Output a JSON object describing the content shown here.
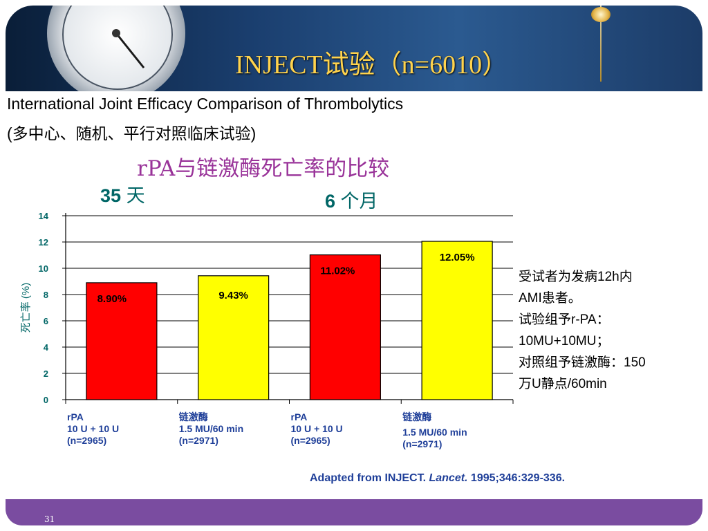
{
  "header": {
    "title": "INJECT试验（n=6010）"
  },
  "subtitle_en": "International Joint Efficacy Comparison of Thrombolytics",
  "subtitle_cn": "(多中心、随机、平行对照临床试验)",
  "chart_title": "rPA与链激酶死亡率的比较",
  "periods": [
    {
      "num": "35",
      "unit": "天"
    },
    {
      "num": "6",
      "unit": "个月"
    }
  ],
  "chart_data": {
    "type": "bar",
    "title": "rPA与链激酶死亡率的比较",
    "ylabel": "死亡率 (%)",
    "ylim": [
      0,
      14
    ],
    "yticks": [
      "0",
      "2",
      "4",
      "6",
      "8",
      "10",
      "12",
      "14"
    ],
    "grid": true,
    "categories": [
      [
        "rPA",
        "10 U + 10 U",
        "(n=2965)"
      ],
      [
        "链激酶",
        "1.5 MU/60 min",
        "(n=2971)"
      ],
      [
        "rPA",
        "10 U + 10 U",
        "(n=2965)"
      ],
      [
        "链激酶",
        " 1.5 MU/60 min",
        "(n=2971)"
      ]
    ],
    "values": [
      8.9,
      9.43,
      11.02,
      12.05
    ],
    "labels": [
      "8.90%",
      "9.43%",
      "11.02%",
      "12.05%"
    ],
    "colors": [
      "#ff0000",
      "#ffff00",
      "#ff0000",
      "#ffff00"
    ]
  },
  "note": [
    "受试者为发病12h内",
    "AMI患者。",
    "试验组予r-PA：",
    "10MU+10MU；",
    "对照组予链激酶：150",
    "万U静点/60min"
  ],
  "source": {
    "prefix": "Adapted from INJECT. ",
    "journal": "Lancet.",
    "suffix": " 1995;346:329-336."
  },
  "page_number": "31"
}
